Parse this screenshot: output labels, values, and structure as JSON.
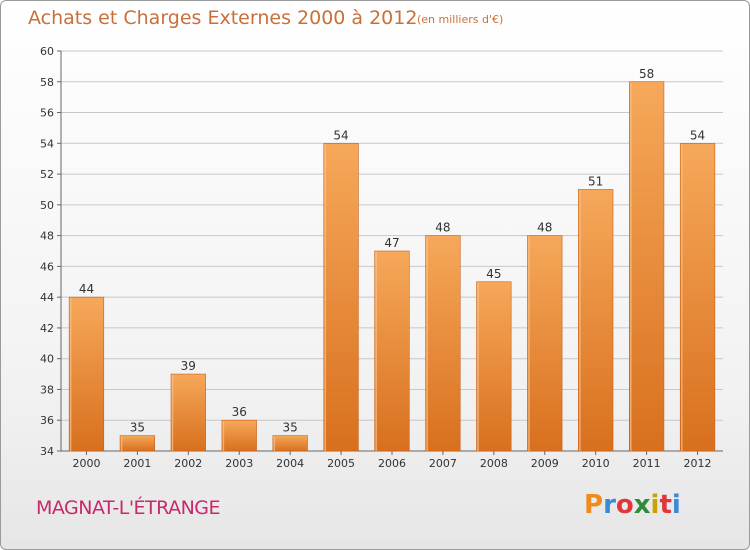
{
  "header": {
    "title": "Achats et Charges Externes 2000 à 2012",
    "subtitle": "(en milliers d'€)"
  },
  "footer": {
    "commune": "MAGNAT-L'ÉTRANGE",
    "logo_text": "Proxiti",
    "logo_letters": [
      "P",
      "r",
      "o",
      "x",
      "i",
      "t",
      "i"
    ],
    "logo_colors": [
      "#f08a1c",
      "#3a8ad6",
      "#e0383a",
      "#2e8b3a",
      "#c9a400",
      "#e0383a",
      "#3a8ad6"
    ]
  },
  "colors": {
    "bar_top": "#f6a85a",
    "bar_bottom": "#d8701e",
    "bar_edge": "#c8601a",
    "title": "#c8703a",
    "commune": "#c8286e",
    "grid": "#c8c8c8"
  },
  "chart_data": {
    "type": "bar",
    "title": "Achats et Charges Externes 2000 à 2012",
    "subtitle": "(en milliers d'€)",
    "xlabel": "",
    "ylabel": "",
    "categories": [
      "2000",
      "2001",
      "2002",
      "2003",
      "2004",
      "2005",
      "2006",
      "2007",
      "2008",
      "2009",
      "2010",
      "2011",
      "2012"
    ],
    "values": [
      44,
      35,
      39,
      36,
      35,
      54,
      47,
      48,
      45,
      48,
      51,
      58,
      54
    ],
    "data_labels": [
      "44",
      "35",
      "39",
      "36",
      "35",
      "54",
      "47",
      "48",
      "45",
      "48",
      "51",
      "58",
      "54"
    ],
    "ylim": [
      34,
      60
    ],
    "yticks": [
      "34",
      "36",
      "38",
      "40",
      "42",
      "44",
      "46",
      "48",
      "50",
      "52",
      "54",
      "56",
      "58",
      "60"
    ],
    "grid": true
  }
}
